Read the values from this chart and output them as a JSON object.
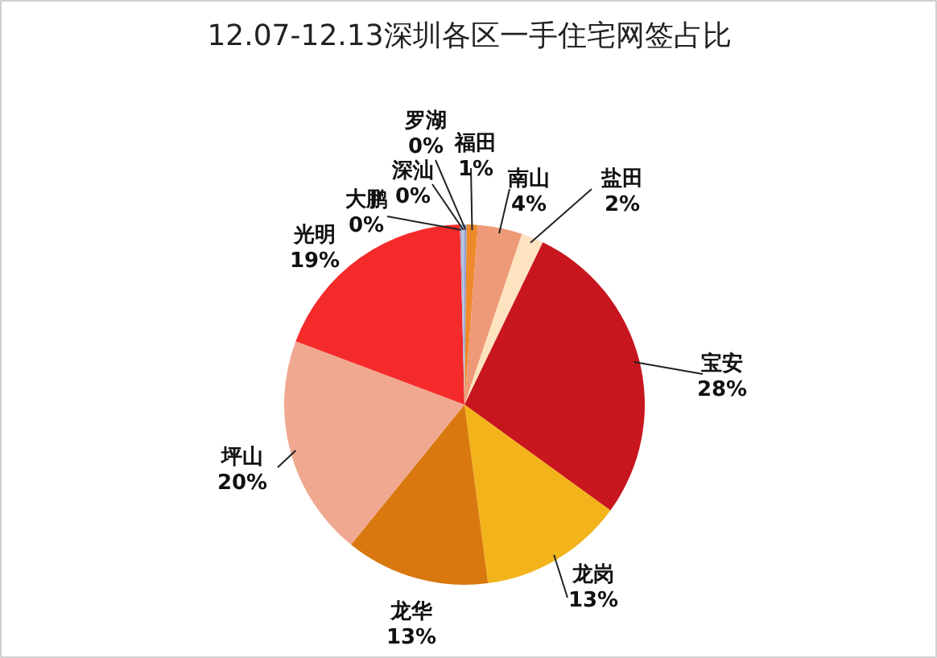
{
  "chart_data": {
    "type": "pie",
    "title": "12.07-12.13深圳各区一手住宅网签占比",
    "categories": [
      "罗湖",
      "福田",
      "南山",
      "盐田",
      "宝安",
      "龙岗",
      "龙华",
      "坪山",
      "光明",
      "大鹏",
      "深汕"
    ],
    "values": [
      0.2,
      1,
      4,
      2,
      28,
      13,
      13,
      20,
      19,
      0.2,
      0.2
    ],
    "value_labels": [
      "0%",
      "1%",
      "4%",
      "2%",
      "28%",
      "13%",
      "13%",
      "20%",
      "19%",
      "0%",
      "0%"
    ],
    "colors": [
      "#8f9fd0",
      "#ee8a2c",
      "#ee9a78",
      "#fde3c0",
      "#c8161e",
      "#f2b41a",
      "#d9780e",
      "#f0a890",
      "#f52a2a",
      "#a9b3d9",
      "#b8c0e0"
    ]
  }
}
